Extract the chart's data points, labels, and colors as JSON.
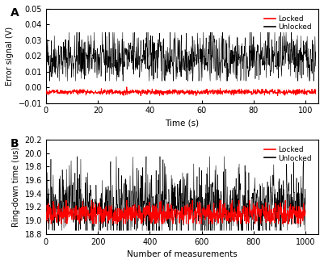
{
  "panel_A": {
    "label": "A",
    "xlabel": "Time (s)",
    "ylabel": "Error signal (V)",
    "xlim": [
      0,
      105
    ],
    "ylim": [
      -0.01,
      0.05
    ],
    "yticks": [
      -0.01,
      0.0,
      0.01,
      0.02,
      0.03,
      0.04,
      0.05
    ],
    "xticks": [
      0,
      20,
      40,
      60,
      80,
      100
    ],
    "unlocked_mean": 0.018,
    "unlocked_noise_scale": 0.008,
    "locked_mean": -0.003,
    "locked_noise_scale": 0.0008,
    "n_points": 1000,
    "x_max": 104
  },
  "panel_B": {
    "label": "B",
    "xlabel": "Number of measurements",
    "ylabel": "Ring-down time (us)",
    "xlim": [
      0,
      1050
    ],
    "ylim": [
      18.8,
      20.2
    ],
    "yticks": [
      18.8,
      19.0,
      19.2,
      19.4,
      19.6,
      19.8,
      20.0,
      20.2
    ],
    "xticks": [
      0,
      200,
      400,
      600,
      800,
      1000
    ],
    "unlocked_mean": 19.2,
    "unlocked_noise_scale": 0.25,
    "locked_mean": 19.1,
    "locked_noise_scale": 0.08,
    "n_points": 1000,
    "x_max": 1000
  },
  "legend_locked_color": "#FF0000",
  "legend_unlocked_color": "#000000",
  "locked_label": "Locked",
  "unlocked_label": "Unlocked",
  "background_color": "#ffffff",
  "figure_bg": "#ffffff"
}
